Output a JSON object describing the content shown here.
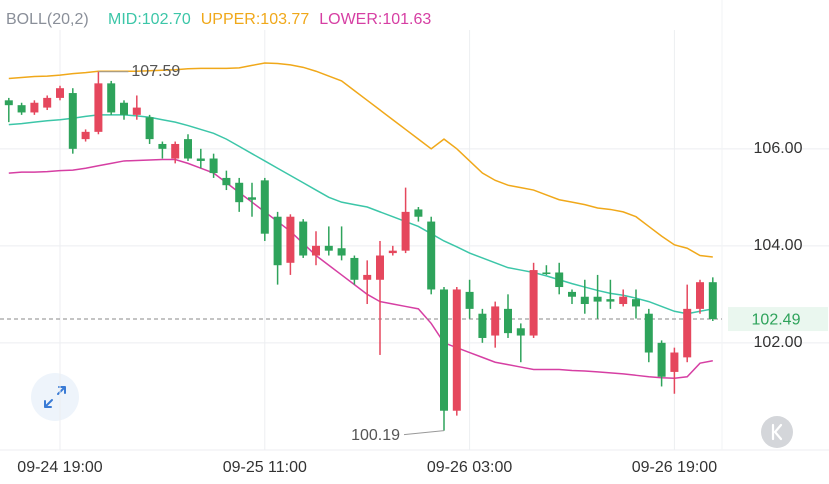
{
  "chart_data": {
    "type": "candlestick",
    "indicator": "BOLL(20,2)",
    "categories": [
      null,
      null,
      null,
      null,
      "09-24 19:00",
      null,
      null,
      null,
      null,
      null,
      null,
      null,
      null,
      null,
      null,
      null,
      null,
      null,
      null,
      null,
      "09-25 11:00",
      null,
      null,
      null,
      null,
      null,
      null,
      null,
      null,
      null,
      null,
      null,
      null,
      null,
      null,
      null,
      "09-26 03:00",
      null,
      null,
      null,
      null,
      null,
      null,
      null,
      null,
      null,
      null,
      null,
      null,
      null,
      null,
      null,
      "09-26 19:00",
      null,
      null,
      null
    ],
    "open": [
      107.0,
      106.9,
      106.75,
      106.85,
      107.05,
      107.15,
      106.2,
      106.35,
      107.35,
      106.95,
      106.7,
      106.65,
      106.1,
      105.8,
      106.2,
      105.8,
      105.8,
      105.4,
      105.3,
      105.0,
      105.35,
      104.6,
      103.65,
      104.5,
      103.8,
      104.0,
      103.95,
      103.75,
      103.3,
      103.3,
      103.85,
      103.9,
      104.75,
      104.5,
      103.1,
      100.6,
      103.05,
      102.6,
      102.15,
      102.7,
      102.3,
      102.15,
      103.45,
      103.45,
      103.05,
      102.95,
      102.95,
      102.9,
      102.8,
      102.9,
      102.6,
      102.0,
      101.4,
      101.7,
      102.7,
      103.25
    ],
    "high": [
      107.05,
      106.95,
      107.0,
      107.1,
      107.3,
      107.25,
      106.4,
      107.59,
      107.4,
      107.0,
      107.1,
      106.7,
      106.15,
      106.15,
      106.3,
      106.0,
      105.9,
      105.55,
      105.4,
      105.3,
      105.4,
      104.7,
      104.65,
      104.55,
      104.3,
      104.4,
      104.4,
      103.8,
      103.7,
      104.1,
      104.0,
      105.2,
      104.8,
      104.6,
      103.15,
      103.15,
      103.3,
      102.7,
      102.85,
      103.0,
      102.4,
      103.65,
      103.6,
      103.65,
      103.1,
      103.3,
      103.4,
      103.3,
      103.1,
      103.1,
      102.7,
      102.05,
      101.9,
      103.2,
      103.3,
      103.35
    ],
    "low": [
      106.55,
      106.7,
      106.7,
      106.8,
      107.0,
      105.9,
      106.15,
      106.3,
      106.7,
      106.6,
      106.6,
      106.1,
      105.8,
      105.7,
      105.75,
      105.6,
      105.4,
      105.15,
      104.7,
      104.6,
      104.1,
      103.2,
      103.4,
      103.75,
      103.6,
      103.8,
      103.7,
      103.2,
      102.8,
      101.75,
      103.8,
      103.85,
      104.5,
      103.0,
      100.19,
      100.5,
      102.5,
      102.0,
      101.9,
      102.1,
      101.6,
      102.1,
      103.4,
      103.0,
      102.8,
      102.6,
      102.5,
      102.7,
      102.75,
      102.5,
      101.6,
      101.1,
      100.95,
      101.6,
      102.6,
      102.45
    ],
    "close": [
      106.9,
      106.75,
      106.95,
      107.05,
      107.25,
      106.0,
      106.35,
      107.35,
      106.75,
      106.7,
      106.85,
      106.2,
      106.0,
      106.1,
      105.8,
      105.75,
      105.5,
      105.25,
      104.9,
      104.95,
      104.25,
      103.6,
      104.6,
      103.8,
      104.0,
      103.9,
      103.8,
      103.3,
      103.4,
      103.8,
      103.9,
      104.7,
      104.6,
      103.1,
      100.6,
      103.1,
      102.7,
      102.1,
      102.75,
      102.2,
      102.15,
      103.5,
      103.45,
      103.15,
      102.95,
      102.8,
      102.85,
      102.85,
      102.95,
      102.75,
      101.8,
      101.3,
      101.8,
      102.7,
      103.25,
      102.49
    ],
    "up_color": "#e5475d",
    "down_color": "#2ea35b",
    "bands": [
      {
        "legend_text": "MID:102.70",
        "color": "#3cc6a8",
        "values": [
          106.5,
          106.52,
          106.55,
          106.58,
          106.6,
          106.63,
          106.67,
          106.7,
          106.7,
          106.7,
          106.68,
          106.65,
          106.6,
          106.55,
          106.48,
          106.4,
          106.32,
          106.2,
          106.05,
          105.9,
          105.75,
          105.6,
          105.45,
          105.3,
          105.15,
          105.0,
          104.9,
          104.85,
          104.8,
          104.7,
          104.6,
          104.5,
          104.4,
          104.25,
          104.1,
          103.98,
          103.85,
          103.75,
          103.65,
          103.55,
          103.5,
          103.45,
          103.38,
          103.3,
          103.22,
          103.15,
          103.08,
          103.02,
          102.98,
          102.92,
          102.85,
          102.75,
          102.65,
          102.6,
          102.65,
          102.7
        ]
      },
      {
        "legend_text": "UPPER:103.77",
        "color": "#f0a81a",
        "values": [
          107.45,
          107.47,
          107.49,
          107.5,
          107.52,
          107.55,
          107.57,
          107.6,
          107.6,
          107.6,
          107.6,
          107.61,
          107.62,
          107.63,
          107.65,
          107.66,
          107.66,
          107.66,
          107.67,
          107.72,
          107.77,
          107.76,
          107.73,
          107.68,
          107.6,
          107.5,
          107.4,
          107.2,
          107.0,
          106.8,
          106.6,
          106.4,
          106.2,
          106.0,
          106.2,
          106.0,
          105.75,
          105.5,
          105.35,
          105.25,
          105.2,
          105.15,
          105.05,
          104.95,
          104.9,
          104.85,
          104.78,
          104.75,
          104.7,
          104.6,
          104.4,
          104.2,
          104.02,
          103.95,
          103.8,
          103.77
        ]
      },
      {
        "legend_text": "LOWER:101.63",
        "color": "#d63fa3",
        "values": [
          105.5,
          105.52,
          105.52,
          105.53,
          105.55,
          105.56,
          105.6,
          105.65,
          105.7,
          105.75,
          105.76,
          105.77,
          105.78,
          105.78,
          105.7,
          105.6,
          105.5,
          105.3,
          105.1,
          104.9,
          104.7,
          104.5,
          104.3,
          104.05,
          103.8,
          103.6,
          103.4,
          103.2,
          103.0,
          102.85,
          102.8,
          102.75,
          102.7,
          102.4,
          102.0,
          101.9,
          101.8,
          101.7,
          101.6,
          101.55,
          101.5,
          101.45,
          101.45,
          101.45,
          101.43,
          101.42,
          101.4,
          101.38,
          101.36,
          101.33,
          101.3,
          101.28,
          101.27,
          101.3,
          101.58,
          101.63
        ]
      }
    ],
    "high_label": 107.59,
    "low_label": 100.19,
    "last_price": 102.49,
    "ylim": [
      99.79,
      108.45
    ],
    "yticks": [
      {
        "value": 106,
        "label": "106.00"
      },
      {
        "value": 104,
        "label": "104.00"
      },
      {
        "value": 102,
        "label": "102.00"
      }
    ],
    "grid": true
  }
}
